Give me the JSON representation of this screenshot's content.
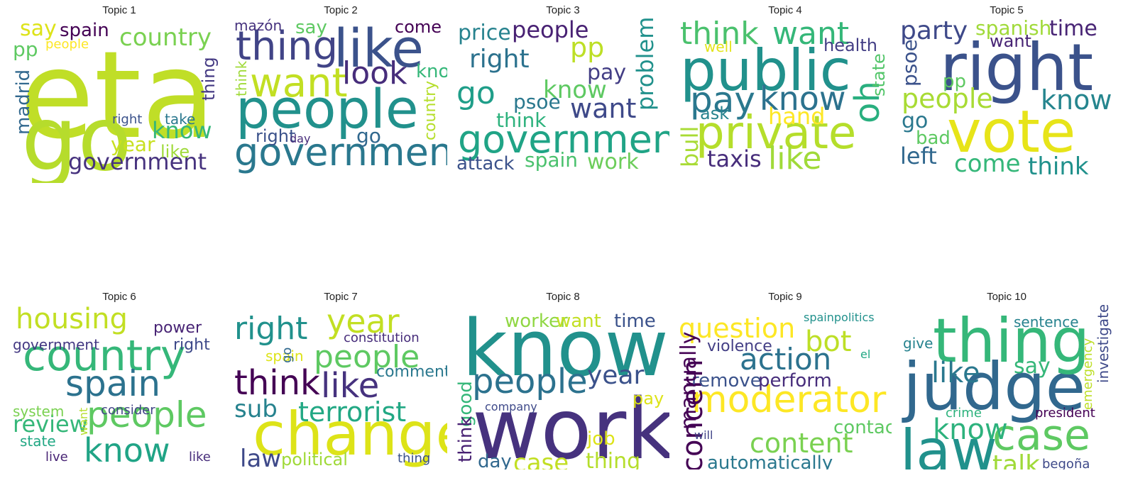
{
  "chart_data": {
    "type": "wordcloud",
    "topics": [
      {
        "title": "Topic 1",
        "words": [
          {
            "text": "eta",
            "color": "#c0de27"
          },
          {
            "text": "go",
            "color": "#b6dc2c"
          },
          {
            "text": "country",
            "color": "#7ad151"
          },
          {
            "text": "government",
            "color": "#46327e"
          },
          {
            "text": "spain",
            "color": "#440154"
          },
          {
            "text": "say",
            "color": "#dde318"
          },
          {
            "text": "pp",
            "color": "#5ec962"
          },
          {
            "text": "people",
            "color": "#fde725"
          },
          {
            "text": "madrid",
            "color": "#31688e"
          },
          {
            "text": "know",
            "color": "#35b779"
          },
          {
            "text": "year",
            "color": "#c8e020"
          },
          {
            "text": "like",
            "color": "#9fda3a"
          },
          {
            "text": "thing",
            "color": "#443983"
          },
          {
            "text": "take",
            "color": "#2a788e"
          },
          {
            "text": "right",
            "color": "#3b528b"
          }
        ]
      },
      {
        "title": "Topic 2",
        "words": [
          {
            "text": "people",
            "color": "#21918c"
          },
          {
            "text": "government",
            "color": "#2a788e"
          },
          {
            "text": "like",
            "color": "#3b528b"
          },
          {
            "text": "thing",
            "color": "#414487"
          },
          {
            "text": "want",
            "color": "#c2df23"
          },
          {
            "text": "look",
            "color": "#472d7b"
          },
          {
            "text": "say",
            "color": "#5ec962"
          },
          {
            "text": "come",
            "color": "#440154"
          },
          {
            "text": "know",
            "color": "#35b779"
          },
          {
            "text": "go",
            "color": "#31688e"
          },
          {
            "text": "right",
            "color": "#3b528b"
          },
          {
            "text": "day",
            "color": "#472c7a"
          },
          {
            "text": "country",
            "color": "#b5de2b"
          },
          {
            "text": "think",
            "color": "#a0da39"
          },
          {
            "text": "mazón",
            "color": "#46327e"
          }
        ]
      },
      {
        "title": "Topic 3",
        "words": [
          {
            "text": "government",
            "color": "#20a486"
          },
          {
            "text": "people",
            "color": "#482173"
          },
          {
            "text": "right",
            "color": "#2c728e"
          },
          {
            "text": "go",
            "color": "#1f9e89"
          },
          {
            "text": "pp",
            "color": "#bddf26"
          },
          {
            "text": "price",
            "color": "#26828e"
          },
          {
            "text": "know",
            "color": "#5ec962"
          },
          {
            "text": "want",
            "color": "#3e4989"
          },
          {
            "text": "pay",
            "color": "#433e85"
          },
          {
            "text": "psoe",
            "color": "#2a788e"
          },
          {
            "text": "think",
            "color": "#2db27d"
          },
          {
            "text": "problem",
            "color": "#21918c"
          },
          {
            "text": "attack",
            "color": "#3b528b"
          },
          {
            "text": "spain",
            "color": "#4ac16d"
          },
          {
            "text": "work",
            "color": "#6ccd5a"
          }
        ]
      },
      {
        "title": "Topic 4",
        "words": [
          {
            "text": "public",
            "color": "#21918c"
          },
          {
            "text": "private",
            "color": "#b5de2b"
          },
          {
            "text": "think",
            "color": "#4ac16d"
          },
          {
            "text": "want",
            "color": "#35b779"
          },
          {
            "text": "pay",
            "color": "#2a788e"
          },
          {
            "text": "know",
            "color": "#2c728e"
          },
          {
            "text": "oh",
            "color": "#29af7f"
          },
          {
            "text": "like",
            "color": "#a0da39"
          },
          {
            "text": "taxis",
            "color": "#472d7b"
          },
          {
            "text": "hand",
            "color": "#fde725"
          },
          {
            "text": "health",
            "color": "#433e85"
          },
          {
            "text": "well",
            "color": "#e2e418"
          },
          {
            "text": "ask",
            "color": "#26828e"
          },
          {
            "text": "bull",
            "color": "#a8db34"
          },
          {
            "text": "state",
            "color": "#52c569"
          }
        ]
      },
      {
        "title": "Topic 5",
        "words": [
          {
            "text": "right",
            "color": "#3b528b"
          },
          {
            "text": "vote",
            "color": "#e7e419"
          },
          {
            "text": "party",
            "color": "#3e4989"
          },
          {
            "text": "spanish",
            "color": "#a0da39"
          },
          {
            "text": "time",
            "color": "#482475"
          },
          {
            "text": "want",
            "color": "#482475"
          },
          {
            "text": "people",
            "color": "#a8db34"
          },
          {
            "text": "know",
            "color": "#25858e"
          },
          {
            "text": "psoe",
            "color": "#3b528b"
          },
          {
            "text": "pp",
            "color": "#5ec962"
          },
          {
            "text": "go",
            "color": "#2a788e"
          },
          {
            "text": "bad",
            "color": "#5ec962"
          },
          {
            "text": "left",
            "color": "#31688e"
          },
          {
            "text": "come",
            "color": "#35b779"
          },
          {
            "text": "think",
            "color": "#21918c"
          }
        ]
      },
      {
        "title": "Topic 6",
        "words": [
          {
            "text": "country",
            "color": "#35b779"
          },
          {
            "text": "housing",
            "color": "#c2df23"
          },
          {
            "text": "spain",
            "color": "#2c728e"
          },
          {
            "text": "people",
            "color": "#5ec962"
          },
          {
            "text": "know",
            "color": "#20a486"
          },
          {
            "text": "review",
            "color": "#35b779"
          },
          {
            "text": "government",
            "color": "#443983"
          },
          {
            "text": "power",
            "color": "#482475"
          },
          {
            "text": "right",
            "color": "#3e4989"
          },
          {
            "text": "system",
            "color": "#7ad151"
          },
          {
            "text": "consider",
            "color": "#414487"
          },
          {
            "text": "state",
            "color": "#22a884"
          },
          {
            "text": "live",
            "color": "#482475"
          },
          {
            "text": "want",
            "color": "#b5de2b"
          },
          {
            "text": "like",
            "color": "#472d7b"
          }
        ]
      },
      {
        "title": "Topic 7",
        "words": [
          {
            "text": "change",
            "color": "#dde318"
          },
          {
            "text": "right",
            "color": "#21918c"
          },
          {
            "text": "year",
            "color": "#c2df23"
          },
          {
            "text": "think",
            "color": "#440154"
          },
          {
            "text": "like",
            "color": "#46327e"
          },
          {
            "text": "people",
            "color": "#5ec962"
          },
          {
            "text": "terrorist",
            "color": "#22a884"
          },
          {
            "text": "constitution",
            "color": "#472d7b"
          },
          {
            "text": "spain",
            "color": "#dde318"
          },
          {
            "text": "comment",
            "color": "#2a788e"
          },
          {
            "text": "sub",
            "color": "#26828e"
          },
          {
            "text": "law",
            "color": "#3e4989"
          },
          {
            "text": "political",
            "color": "#a0da39"
          },
          {
            "text": "thing",
            "color": "#3b528b"
          },
          {
            "text": "go",
            "color": "#31688e"
          }
        ]
      },
      {
        "title": "Topic 8",
        "words": [
          {
            "text": "know",
            "color": "#21918c"
          },
          {
            "text": "work",
            "color": "#46327e"
          },
          {
            "text": "people",
            "color": "#2c728e"
          },
          {
            "text": "year",
            "color": "#3b528b"
          },
          {
            "text": "worker",
            "color": "#90d743"
          },
          {
            "text": "want",
            "color": "#c2df23"
          },
          {
            "text": "time",
            "color": "#3b528b"
          },
          {
            "text": "good",
            "color": "#35b779"
          },
          {
            "text": "think",
            "color": "#482173"
          },
          {
            "text": "pay",
            "color": "#dde318"
          },
          {
            "text": "company",
            "color": "#3e4989"
          },
          {
            "text": "job",
            "color": "#dde318"
          },
          {
            "text": "day",
            "color": "#31688e"
          },
          {
            "text": "case",
            "color": "#c2df23"
          },
          {
            "text": "thing",
            "color": "#b5de2b"
          }
        ]
      },
      {
        "title": "Topic 9",
        "words": [
          {
            "text": "moderator",
            "color": "#fde725"
          },
          {
            "text": "question",
            "color": "#fde725"
          },
          {
            "text": "action",
            "color": "#2c728e"
          },
          {
            "text": "bot",
            "color": "#bddf26"
          },
          {
            "text": "violence",
            "color": "#433e85"
          },
          {
            "text": "spainpolitics",
            "color": "#21918c"
          },
          {
            "text": "el",
            "color": "#22a884"
          },
          {
            "text": "concern",
            "color": "#440154"
          },
          {
            "text": "remove",
            "color": "#3b528b"
          },
          {
            "text": "perform",
            "color": "#472d7b"
          },
          {
            "text": "contact",
            "color": "#5ec962"
          },
          {
            "text": "will",
            "color": "#414487"
          },
          {
            "text": "content",
            "color": "#7ad151"
          },
          {
            "text": "manually",
            "color": "#440154"
          },
          {
            "text": "automatically",
            "color": "#2a788e"
          }
        ]
      },
      {
        "title": "Topic 10",
        "words": [
          {
            "text": "judge",
            "color": "#31688e"
          },
          {
            "text": "thing",
            "color": "#35b779"
          },
          {
            "text": "law",
            "color": "#21918c"
          },
          {
            "text": "case",
            "color": "#5ec962"
          },
          {
            "text": "like",
            "color": "#2a788e"
          },
          {
            "text": "say",
            "color": "#35b779"
          },
          {
            "text": "know",
            "color": "#2db27d"
          },
          {
            "text": "talk",
            "color": "#a0da39"
          },
          {
            "text": "sentence",
            "color": "#26828e"
          },
          {
            "text": "give",
            "color": "#26828e"
          },
          {
            "text": "emergency",
            "color": "#bddf26"
          },
          {
            "text": "investigate",
            "color": "#3e4989"
          },
          {
            "text": "crime",
            "color": "#2db27d"
          },
          {
            "text": "president",
            "color": "#440154"
          },
          {
            "text": "begoña",
            "color": "#3e4989"
          }
        ]
      }
    ]
  }
}
